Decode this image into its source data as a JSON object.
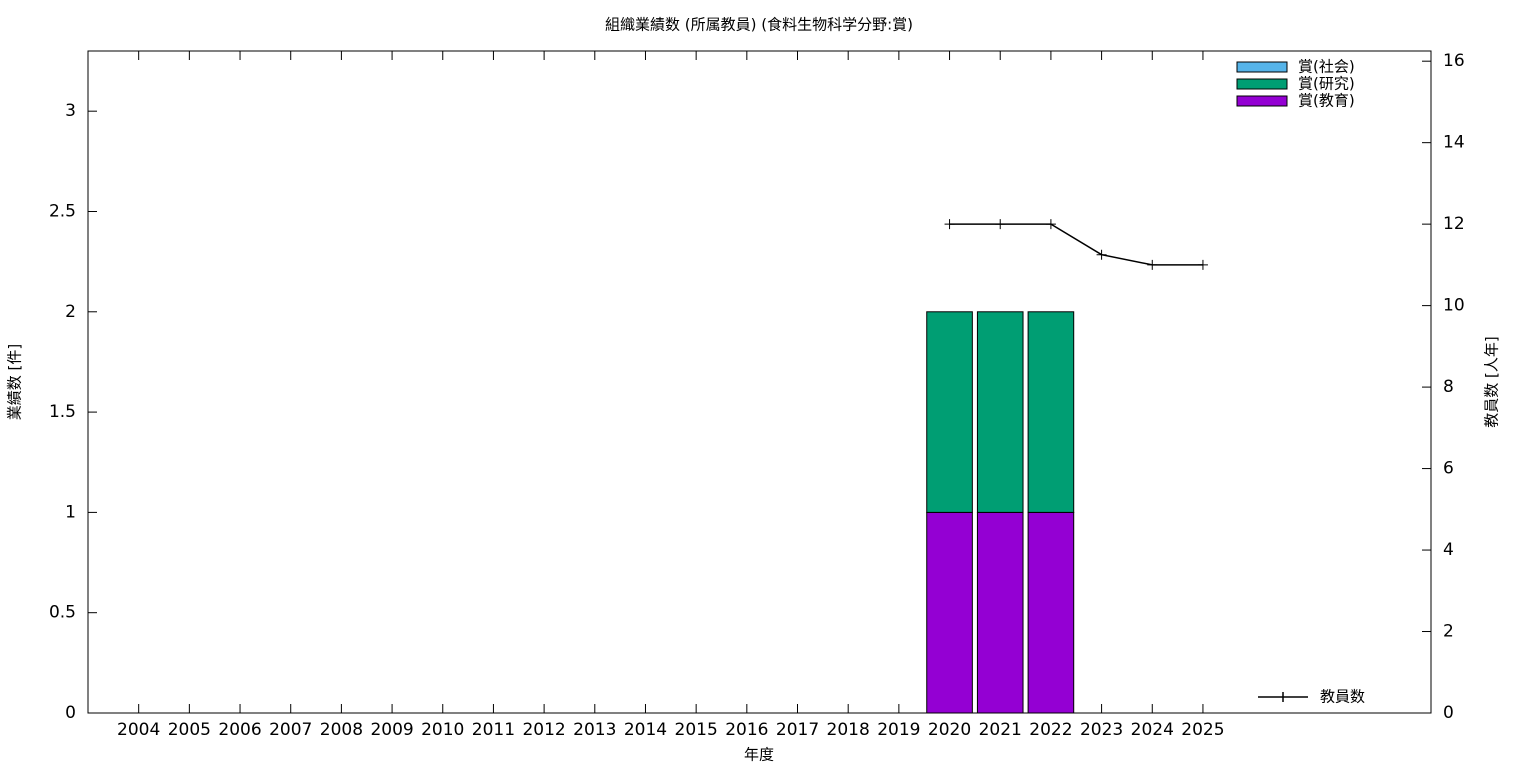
{
  "chart_data": {
    "type": "bar",
    "stacked": true,
    "title": "組織業績数 (所属教員) (食料生物科学分野:賞)",
    "x_label": "年度",
    "y_label": "業績数 [件]",
    "y2_label": "教員数 [人年]",
    "categories": [
      "2004",
      "2005",
      "2006",
      "2007",
      "2008",
      "2009",
      "2010",
      "2011",
      "2012",
      "2013",
      "2014",
      "2015",
      "2016",
      "2017",
      "2018",
      "2019",
      "2020",
      "2021",
      "2022",
      "2023",
      "2024",
      "2025"
    ],
    "series": [
      {
        "name": "賞(教育)",
        "color": "#9400d3",
        "values": [
          0,
          0,
          0,
          0,
          0,
          0,
          0,
          0,
          0,
          0,
          0,
          0,
          0,
          0,
          0,
          0,
          1,
          1,
          1,
          0,
          0,
          0
        ]
      },
      {
        "name": "賞(研究)",
        "color": "#009e73",
        "values": [
          0,
          0,
          0,
          0,
          0,
          0,
          0,
          0,
          0,
          0,
          0,
          0,
          0,
          0,
          0,
          0,
          1,
          1,
          1,
          0,
          0,
          0
        ]
      },
      {
        "name": "賞(社会)",
        "color": "#56b4e9",
        "values": [
          0,
          0,
          0,
          0,
          0,
          0,
          0,
          0,
          0,
          0,
          0,
          0,
          0,
          0,
          0,
          0,
          0,
          0,
          0,
          0,
          0,
          0
        ]
      },
      {
        "name": "教員数",
        "color": "#000000",
        "type": "line",
        "axis": "y2",
        "values": [
          null,
          null,
          null,
          null,
          null,
          null,
          null,
          null,
          null,
          null,
          null,
          null,
          null,
          null,
          null,
          null,
          12,
          12,
          12,
          11.25,
          11,
          11
        ]
      }
    ],
    "ylim": [
      0,
      3.3
    ],
    "yticks": [
      0,
      0.5,
      1,
      1.5,
      2,
      2.5,
      3
    ],
    "y2lim": [
      0,
      16.25
    ],
    "y2ticks": [
      0,
      2,
      4,
      6,
      8,
      10,
      12,
      14,
      16
    ],
    "grid": false
  }
}
